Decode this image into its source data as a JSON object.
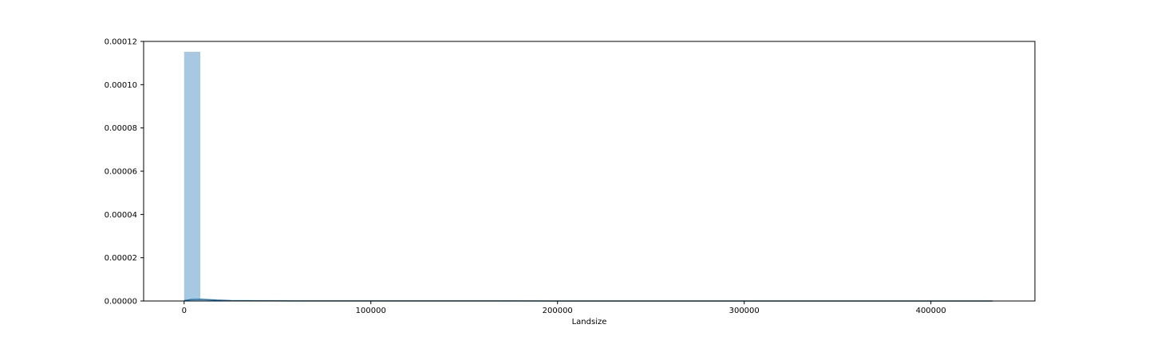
{
  "chart_data": {
    "type": "histogram",
    "title": "",
    "xlabel": "Landsize",
    "ylabel": "",
    "xlim": [
      -21700,
      455700
    ],
    "ylim": [
      0,
      0.00012
    ],
    "xticks": [
      0,
      100000,
      200000,
      300000,
      400000
    ],
    "xtick_labels": [
      "0",
      "100000",
      "200000",
      "300000",
      "400000"
    ],
    "yticks": [
      0,
      2e-05,
      4e-05,
      6e-05,
      8e-05,
      0.0001,
      0.00012
    ],
    "ytick_labels": [
      "0.00000",
      "0.00002",
      "0.00004",
      "0.00006",
      "0.00008",
      "0.00010",
      "0.00012"
    ],
    "bins": [
      {
        "x0": 0,
        "x1": 8670,
        "density": 0.0001152
      },
      {
        "x0": 8670,
        "x1": 17340,
        "density": 8e-07
      },
      {
        "x0": 17340,
        "x1": 26010,
        "density": 2e-07
      }
    ],
    "kde": {
      "x": [
        0,
        4000,
        8670,
        13000,
        17340,
        25000,
        40000,
        60000,
        100000,
        150000,
        200000,
        250000,
        300000,
        350000,
        400000,
        433000
      ],
      "y": [
        2e-07,
        7e-07,
        8e-07,
        6e-07,
        4e-07,
        2e-07,
        1e-07,
        5e-08,
        3e-08,
        3e-08,
        2e-08,
        2e-08,
        2e-08,
        2e-08,
        2e-08,
        1e-08
      ]
    },
    "grid": false,
    "colors": {
      "bar": "#a6c8e0",
      "kde_line": "#1f77b4",
      "axes": "#000000"
    }
  }
}
